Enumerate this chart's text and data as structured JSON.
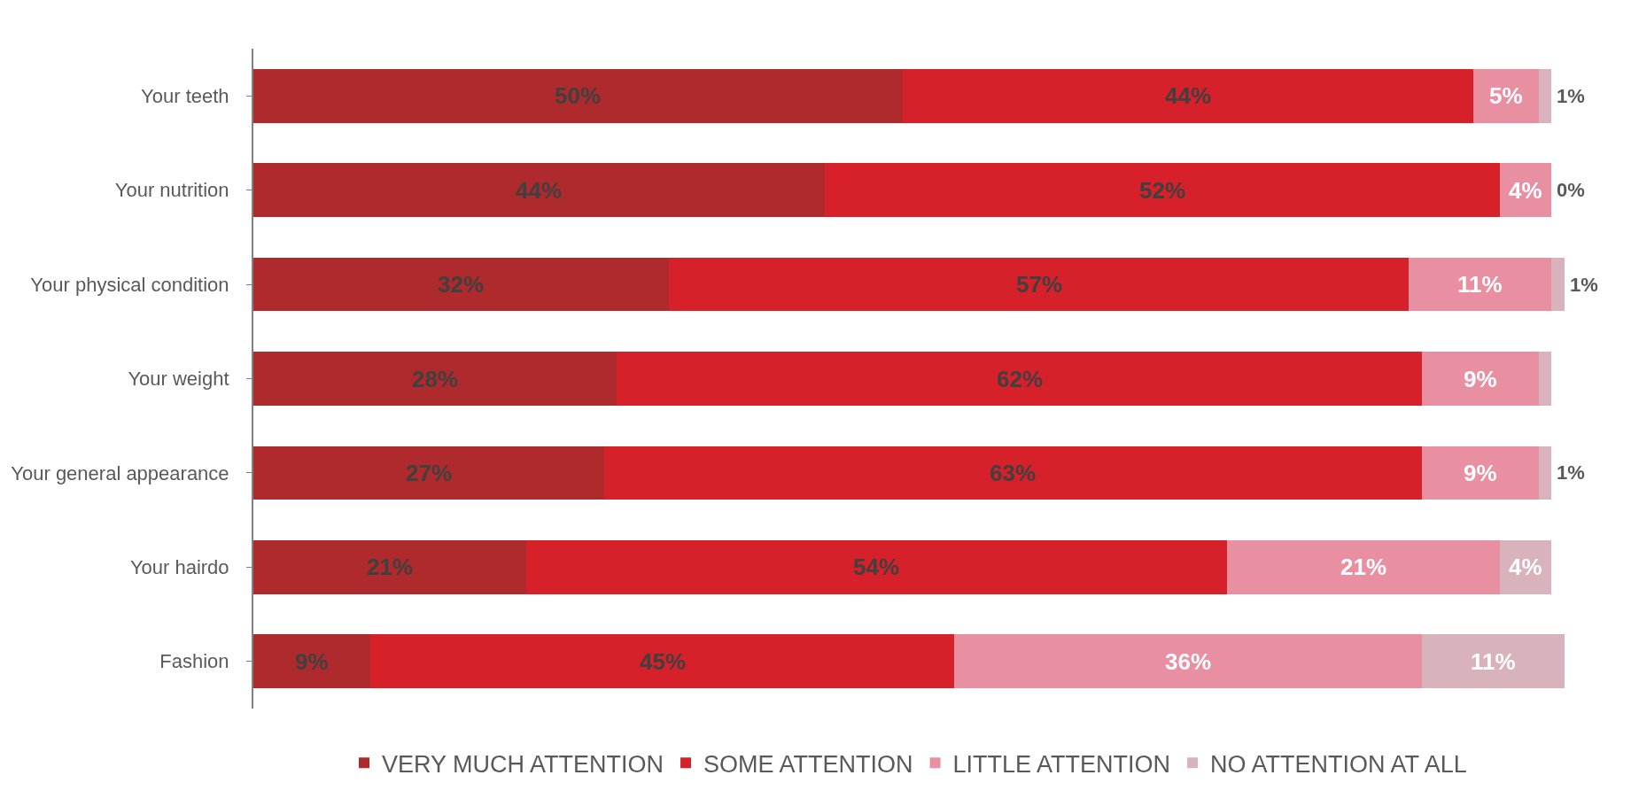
{
  "chart_data": {
    "type": "bar",
    "orientation": "horizontal",
    "stacked": true,
    "categories": [
      "Your teeth",
      "Your nutrition",
      "Your physical condition",
      "Your weight",
      "Your general appearance",
      "Your hairdo",
      "Fashion"
    ],
    "xlim": [
      0,
      101
    ],
    "tick_labels": "y",
    "legend": "bottom",
    "series": [
      {
        "name": "VERY MUCH ATTENTION",
        "color": "#ae2a2c",
        "values": [
          50,
          44,
          32,
          28,
          27,
          21,
          9
        ],
        "value_labels": [
          "50%",
          "44%",
          "32%",
          "28%",
          "27%",
          "21%",
          "9%"
        ]
      },
      {
        "name": "SOME ATTENTION",
        "color": "#d7212a",
        "values": [
          44,
          52,
          57,
          62,
          63,
          54,
          45
        ],
        "value_labels": [
          "44%",
          "52%",
          "57%",
          "62%",
          "63%",
          "54%",
          "45%"
        ]
      },
      {
        "name": "LITTLE ATTENTION",
        "color": "#e88fa2",
        "values": [
          5,
          4,
          11,
          9,
          9,
          21,
          36
        ],
        "value_labels": [
          "5%",
          "4%",
          "11%",
          "9%",
          "9%",
          "21%",
          "36%"
        ]
      },
      {
        "name": "NO ATTENTION AT ALL",
        "color": "#d9b3bc",
        "values": [
          1,
          0,
          1,
          1,
          1,
          4,
          11
        ],
        "value_labels": [
          "1%",
          "0%",
          "1%",
          null,
          "1%",
          "4%",
          "11%"
        ]
      }
    ]
  }
}
